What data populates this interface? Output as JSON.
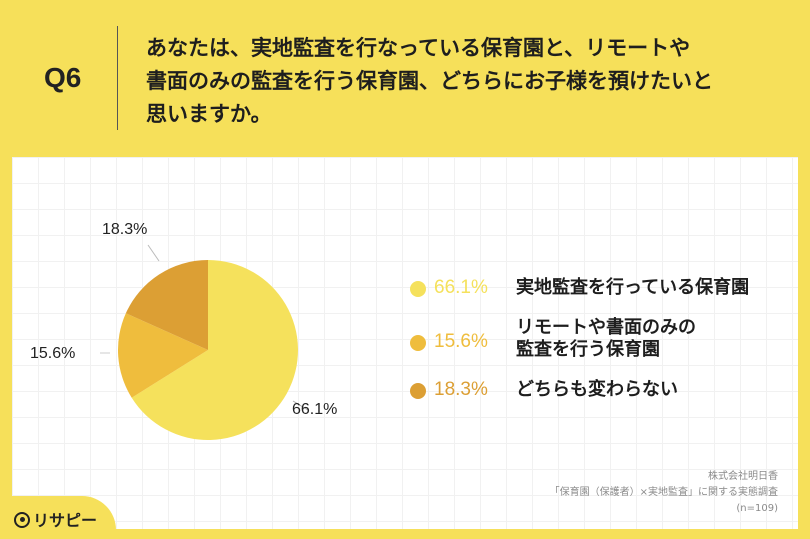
{
  "header": {
    "question_number": "Q6",
    "question_lines": [
      "あなたは、実地監査を行なっている保育園と、リモートや",
      "書面のみの監査を行う保育園、どちらにお子様を預けたいと",
      "思いますか。"
    ]
  },
  "chart_data": {
    "type": "pie",
    "title": "あなたは、実地監査を行なっている保育園と、リモートや書面のみの監査を行う保育園、どちらにお子様を預けたいと思いますか。",
    "categories": [
      "実地監査を行っている保育園",
      "リモートや書面のみの監査を行う保育園",
      "どちらも変わらない"
    ],
    "values": [
      66.1,
      15.6,
      18.3
    ],
    "value_labels": [
      "66.1%",
      "15.6%",
      "18.3%"
    ],
    "colors": [
      "#f5e15c",
      "#efbd3d",
      "#dc9f34"
    ],
    "start_angle": "12 o'clock, clockwise",
    "legend_position": "right"
  },
  "legend": [
    {
      "pct": "66.1%",
      "lines": [
        "実地監査を行っている保育園"
      ],
      "color": "#f5e15c"
    },
    {
      "pct": "15.6%",
      "lines": [
        "リモートや書面のみの",
        "監査を行う保育園"
      ],
      "color": "#efbd3d"
    },
    {
      "pct": "18.3%",
      "lines": [
        "どちらも変わらない"
      ],
      "color": "#dc9f34"
    }
  ],
  "source": {
    "company": "株式会社明日香",
    "survey": "「保育園（保護者）×実地監査」に関する実態調査",
    "sample": "(n=109)"
  },
  "logo": {
    "text": "リサピー"
  }
}
